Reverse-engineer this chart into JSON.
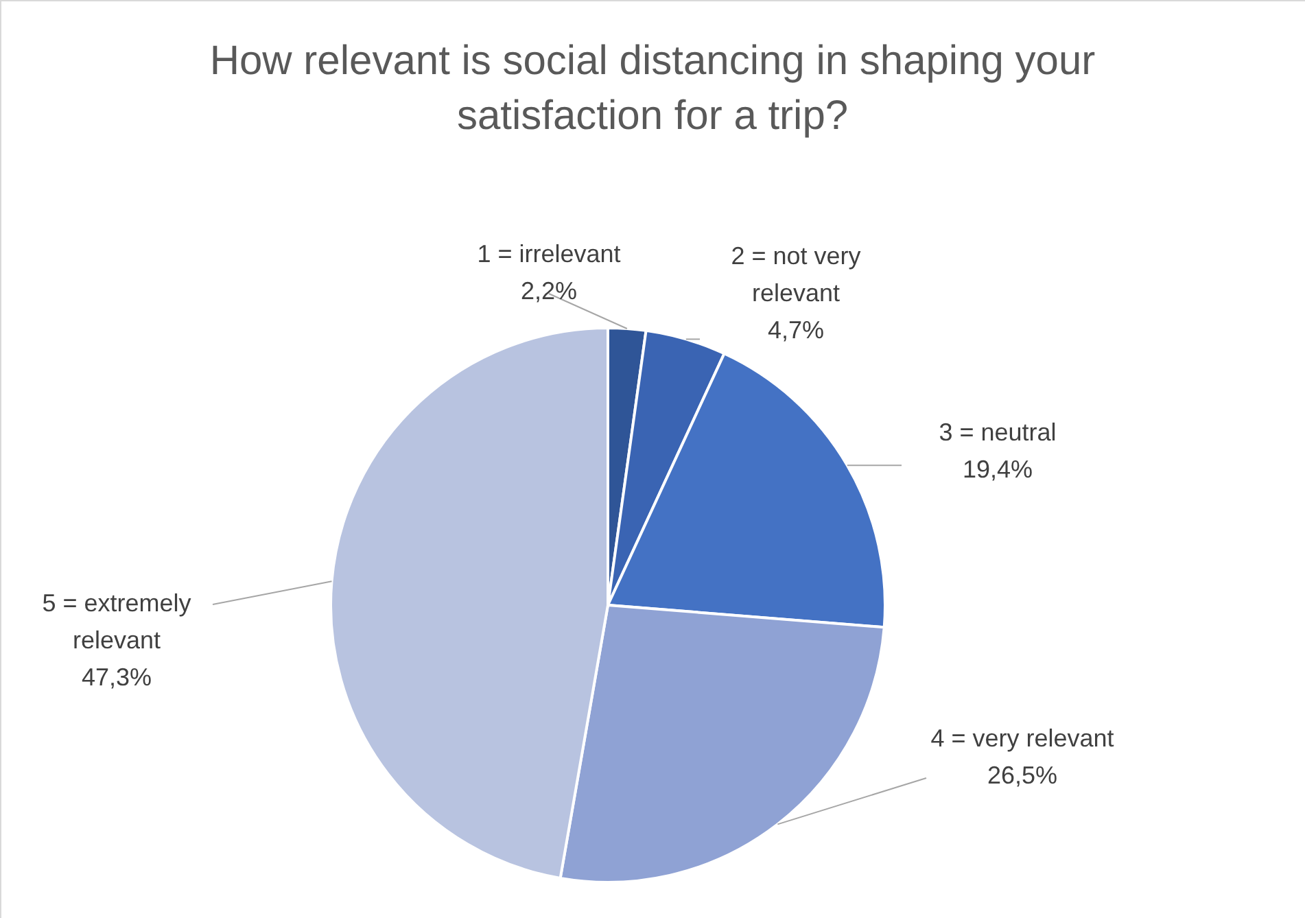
{
  "chart_data": {
    "type": "pie",
    "title": "How relevant is social distancing in shaping your satisfaction for a trip?",
    "categories": [
      "1 = irrelevant",
      "2 = not very relevant",
      "3 = neutral",
      "4 = very relevant",
      "5 =  extremely relevant"
    ],
    "values": [
      2.2,
      4.7,
      19.4,
      26.5,
      47.3
    ],
    "value_labels": [
      "2,2%",
      "4,7%",
      "19,4%",
      "26,5%",
      "47,3%"
    ],
    "colors": [
      "#2f5597",
      "#3a64b3",
      "#4472c4",
      "#8fa2d4",
      "#b8c3e0"
    ],
    "legend": false
  }
}
